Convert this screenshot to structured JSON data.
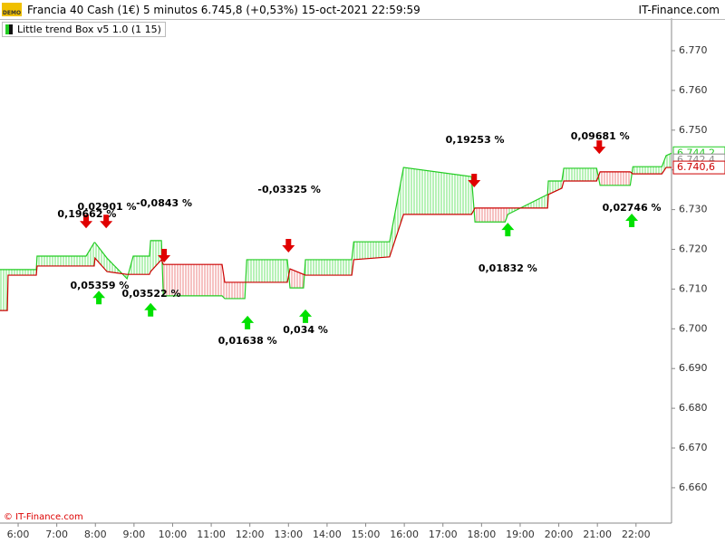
{
  "header": {
    "badge": "DEMO",
    "title": "Francia 40 Cash (1€) 5 minutos 6.745,8 (+0,53%) 15-oct-2021 22:59:59",
    "brand": "IT-Finance.com"
  },
  "indicator": "Little trend Box v5 1.0 (1 15)",
  "footer": "© IT-Finance.com",
  "chart_data": {
    "type": "line",
    "xlim": [
      5.53,
      22.92
    ],
    "xticks": [
      {
        "value": 6,
        "label": "6:00"
      },
      {
        "value": 7,
        "label": "7:00"
      },
      {
        "value": 8,
        "label": "8:00"
      },
      {
        "value": 9,
        "label": "9:00"
      },
      {
        "value": 10,
        "label": "10:00"
      },
      {
        "value": 11,
        "label": "11:00"
      },
      {
        "value": 12,
        "label": "12:00"
      },
      {
        "value": 13,
        "label": "13:00"
      },
      {
        "value": 14,
        "label": "14:00"
      },
      {
        "value": 15,
        "label": "15:00"
      },
      {
        "value": 16,
        "label": "16:00"
      },
      {
        "value": 17,
        "label": "17:00"
      },
      {
        "value": 18,
        "label": "18:00"
      },
      {
        "value": 19,
        "label": "19:00"
      },
      {
        "value": 20,
        "label": "20:00"
      },
      {
        "value": 21,
        "label": "21:00"
      },
      {
        "value": 22,
        "label": "22:00"
      }
    ],
    "ylim": [
      6651.1,
      6778.2
    ],
    "yticks": [
      {
        "value": 6660,
        "label": "6.660"
      },
      {
        "value": 6670,
        "label": "6.670"
      },
      {
        "value": 6680,
        "label": "6.680"
      },
      {
        "value": 6690,
        "label": "6.690"
      },
      {
        "value": 6700,
        "label": "6.700"
      },
      {
        "value": 6710,
        "label": "6.710"
      },
      {
        "value": 6720,
        "label": "6.720"
      },
      {
        "value": 6730,
        "label": "6.730"
      },
      {
        "value": 6740,
        "label": "6.740"
      },
      {
        "value": 6750,
        "label": "6.750"
      },
      {
        "value": 6760,
        "label": "6.760"
      },
      {
        "value": 6770,
        "label": "6.770"
      }
    ],
    "grid": false,
    "x": [
      5.53,
      5.72,
      5.74,
      6.47,
      6.49,
      7.76,
      7.97,
      7.99,
      8.3,
      8.82,
      8.98,
      9.4,
      9.43,
      9.71,
      9.76,
      11.28,
      11.35,
      11.87,
      11.92,
      12.97,
      13.04,
      13.39,
      13.44,
      14.64,
      14.69,
      15.62,
      15.98,
      17.74,
      17.83,
      18.61,
      18.68,
      19.71,
      19.73,
      20.08,
      20.13,
      20.98,
      21.07,
      21.85,
      21.92,
      22.67,
      22.78,
      22.92
    ],
    "series": [
      {
        "color": "#22cc22",
        "fill": "#88e888",
        "values": [
          6714.9,
          6714.9,
          6714.9,
          6714.9,
          6718.3,
          6718.3,
          6721.7,
          6721.7,
          6717.8,
          6712.6,
          6718.3,
          6718.3,
          6722.2,
          6722.2,
          6708.3,
          6708.3,
          6707.6,
          6707.6,
          6717.4,
          6717.4,
          6710.3,
          6710.3,
          6717.4,
          6717.4,
          6721.9,
          6721.9,
          6740.6,
          6738.3,
          6726.9,
          6726.9,
          6728.8,
          6733.8,
          6737.2,
          6737.2,
          6740.4,
          6740.4,
          6736.1,
          6736.1,
          6740.8,
          6740.8,
          6743.6,
          6744.2
        ]
      },
      {
        "color": "#cc0000",
        "fill": "#f09a9a",
        "values": [
          6704.6,
          6704.6,
          6713.5,
          6713.5,
          6715.8,
          6715.8,
          6715.8,
          6717.8,
          6714.4,
          6713.7,
          6713.7,
          6713.7,
          6714.4,
          6717.4,
          6716.2,
          6716.2,
          6711.7,
          6711.7,
          6711.7,
          6711.7,
          6715.1,
          6713.7,
          6713.5,
          6713.5,
          6717.4,
          6718.1,
          6728.8,
          6728.8,
          6730.4,
          6730.4,
          6730.4,
          6730.4,
          6733.8,
          6735.4,
          6737.2,
          6737.2,
          6739.5,
          6739.5,
          6739.0,
          6739.0,
          6740.6,
          6740.6
        ]
      }
    ],
    "signals": [
      {
        "x": 7.76,
        "y": 6726.9,
        "direction": "down",
        "color": "#e00000"
      },
      {
        "x": 8.28,
        "y": 6726.9,
        "direction": "down",
        "color": "#e00000"
      },
      {
        "x": 9.78,
        "y": 6718.3,
        "direction": "down",
        "color": "#e00000"
      },
      {
        "x": 13.0,
        "y": 6720.8,
        "direction": "down",
        "color": "#e00000"
      },
      {
        "x": 17.81,
        "y": 6737.2,
        "direction": "down",
        "color": "#e00000"
      },
      {
        "x": 21.05,
        "y": 6745.6,
        "direction": "down",
        "color": "#e00000"
      },
      {
        "x": 8.09,
        "y": 6708.0,
        "direction": "up",
        "color": "#00e000"
      },
      {
        "x": 9.43,
        "y": 6704.9,
        "direction": "up",
        "color": "#00e000"
      },
      {
        "x": 11.94,
        "y": 6701.7,
        "direction": "up",
        "color": "#00e000"
      },
      {
        "x": 13.44,
        "y": 6703.3,
        "direction": "up",
        "color": "#00e000"
      },
      {
        "x": 18.68,
        "y": 6725.1,
        "direction": "up",
        "color": "#00e000"
      },
      {
        "x": 21.89,
        "y": 6727.4,
        "direction": "up",
        "color": "#00e000"
      }
    ],
    "annotations": [
      {
        "text": "0,19662 %",
        "x": 7.78,
        "y": 6728.8
      },
      {
        "text": "0,02901 %",
        "x": 8.3,
        "y": 6730.6
      },
      {
        "text": "-0,0843 %",
        "x": 9.78,
        "y": 6731.5
      },
      {
        "text": "-0,03325 %",
        "x": 13.02,
        "y": 6734.9
      },
      {
        "text": "0,19253 %",
        "x": 17.83,
        "y": 6747.4
      },
      {
        "text": "0,09681 %",
        "x": 21.07,
        "y": 6748.4
      },
      {
        "text": "0,05359 %",
        "x": 8.11,
        "y": 6710.8
      },
      {
        "text": "0,03522 %",
        "x": 9.45,
        "y": 6708.7
      },
      {
        "text": "0,01638 %",
        "x": 11.94,
        "y": 6696.9
      },
      {
        "text": "0,034 %",
        "x": 13.44,
        "y": 6699.6
      },
      {
        "text": "0,01832 %",
        "x": 18.68,
        "y": 6715.1
      },
      {
        "text": "0,02746 %",
        "x": 21.89,
        "y": 6730.4
      }
    ],
    "price_tags": [
      {
        "value": 6744.2,
        "label": "6.744,2",
        "color": "#22cc22"
      },
      {
        "value": 6742.4,
        "label": "6.742,4",
        "color": "#888888"
      },
      {
        "value": 6740.6,
        "label": "6.740,6",
        "color": "#cc0000"
      }
    ]
  }
}
